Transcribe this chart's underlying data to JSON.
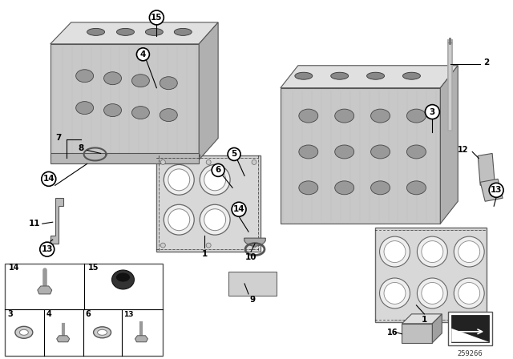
{
  "bg_color": "#ffffff",
  "diagram_id": "259266",
  "callout_fill": "#ffffff",
  "callout_edge": "#000000",
  "gray_light": "#d0d0d0",
  "gray_mid": "#aaaaaa",
  "gray_dark": "#777777",
  "gray_darker": "#555555",
  "black": "#000000",
  "white": "#ffffff"
}
